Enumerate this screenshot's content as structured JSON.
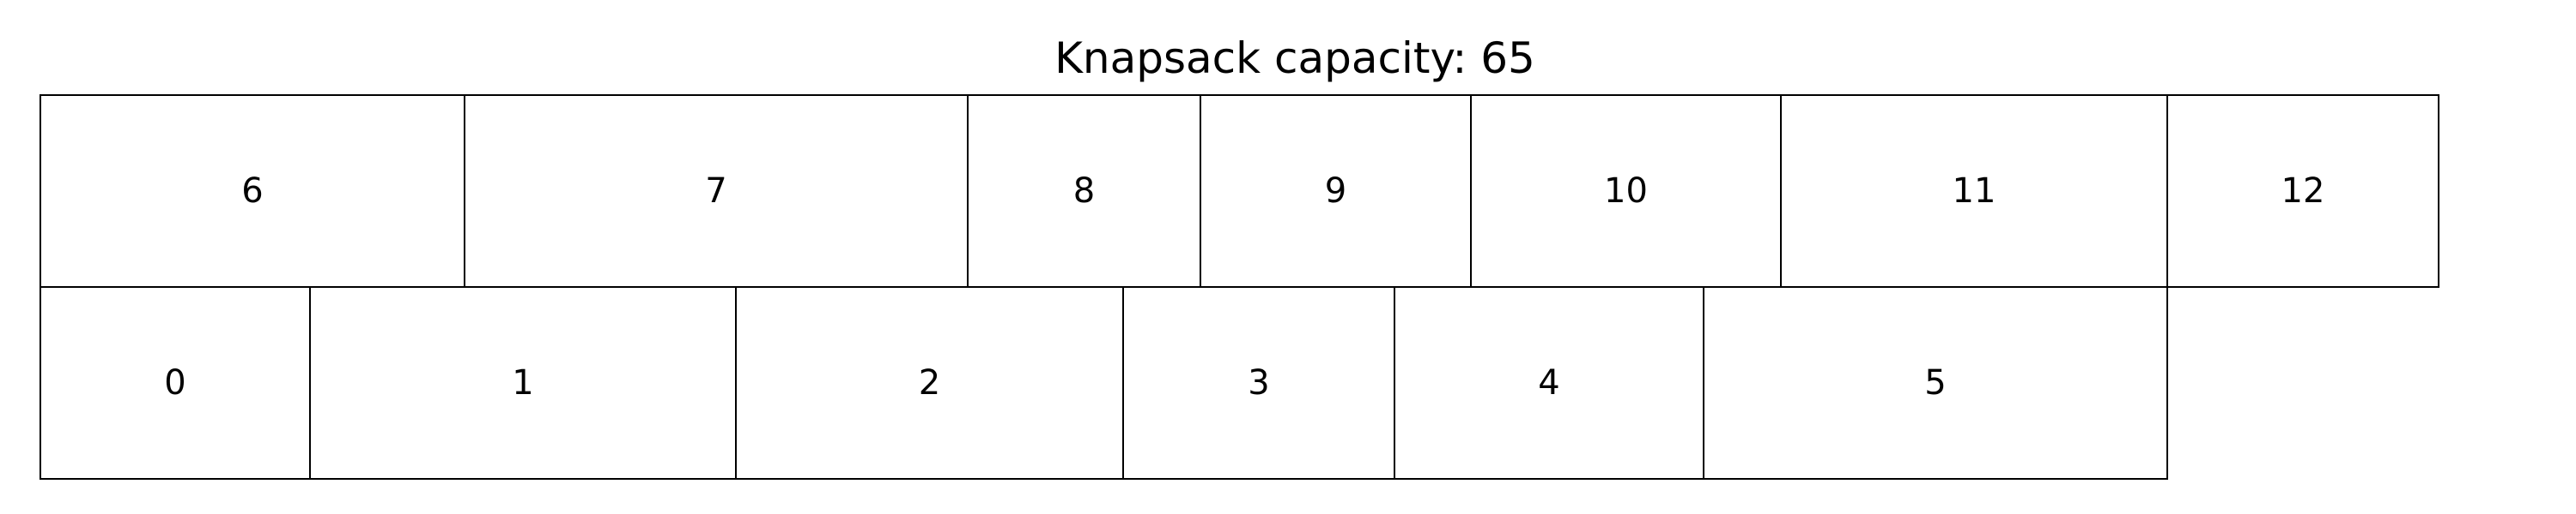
{
  "title": "Knapsack capacity: 65",
  "rows": [
    {
      "items": [
        {
          "label": "6",
          "size": 5
        },
        {
          "label": "7",
          "size": 6
        },
        {
          "label": "8",
          "size": 3
        },
        {
          "label": "9",
          "size": 3
        },
        {
          "label": "10",
          "size": 4
        },
        {
          "label": "11",
          "size": 5
        },
        {
          "label": "12",
          "size": 3
        }
      ]
    },
    {
      "items": [
        {
          "label": "0",
          "size": 3
        },
        {
          "label": "1",
          "size": 5
        },
        {
          "label": "2",
          "size": 5
        },
        {
          "label": "3",
          "size": 3
        },
        {
          "label": "4",
          "size": 4
        },
        {
          "label": "5",
          "size": 5
        }
      ]
    }
  ]
}
